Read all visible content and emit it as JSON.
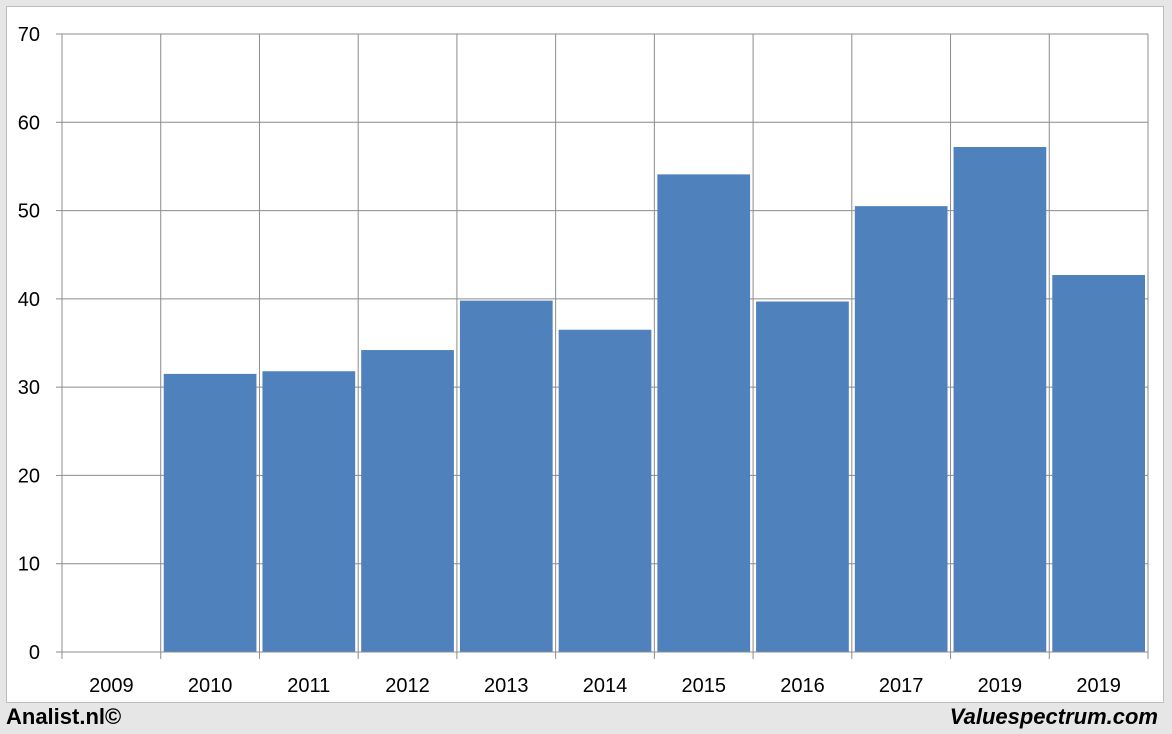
{
  "chart_data": {
    "type": "bar",
    "categories": [
      "2009",
      "2010",
      "2011",
      "2012",
      "2013",
      "2014",
      "2015",
      "2016",
      "2017",
      "2019",
      "2019"
    ],
    "values": [
      0,
      31.5,
      31.8,
      34.2,
      39.8,
      36.5,
      54.1,
      39.7,
      50.5,
      57.2,
      42.7
    ],
    "ylim": [
      0,
      70
    ],
    "yticks": [
      0,
      10,
      20,
      30,
      40,
      50,
      60,
      70
    ],
    "grid": true,
    "legend": "none",
    "bar_color": "#4f81bd",
    "grid_color": "#8c8c8c"
  },
  "footer": {
    "left": "Analist.nl©",
    "right": "Valuespectrum.com"
  }
}
